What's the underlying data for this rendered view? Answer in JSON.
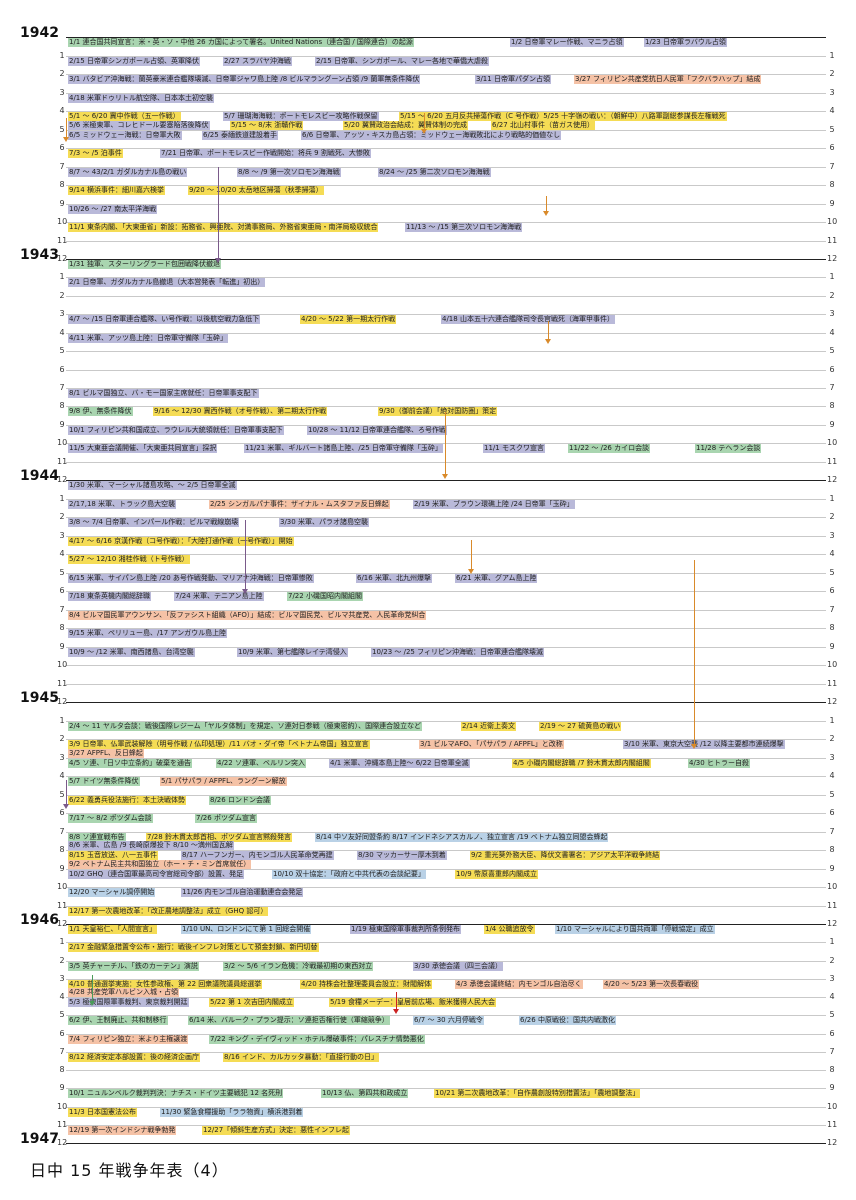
{
  "title": "日中 15 年戦争年表（4）",
  "colors": {
    "g": "#a9d5b0",
    "p": "#b9b9d9",
    "y": "#f5dc55",
    "o": "#f5c2a6",
    "b": "#b9d1e6",
    "v": "#d8b8da"
  },
  "years": [
    {
      "label": "1942",
      "events": [
        {
          "m": 1,
          "c": "g",
          "t": "1/1 連合国共同宣言：米・英・ソ・中他 26 カ国によって署名。United Nations（連合国 / 国際連合）の起源"
        },
        {
          "m": 1,
          "c": "p",
          "t": "1/2 日帝軍マレー作戦、マニラ占領"
        },
        {
          "m": 1,
          "c": "p",
          "t": "1/23 日帝軍ラバウル占領"
        },
        {
          "m": 2,
          "c": "p",
          "t": "2/15 日帝軍シンガポール占領、英軍降伏"
        },
        {
          "m": 2,
          "c": "p",
          "t": "2/27 スラバヤ沖海戦"
        },
        {
          "m": 2,
          "c": "p",
          "t": "2/15 日帝軍、シンガポール、マレー各地で華僑大虐殺"
        },
        {
          "m": 3,
          "c": "p",
          "t": "3/1 バタビア沖海戦：蘭英豪米連合艦隊壊滅、日帝軍ジャワ島上陸 /8 ビルマラングーン占領 /9 蘭軍無条件降伏"
        },
        {
          "m": 3,
          "c": "p",
          "t": "3/11 日帝軍パダン占領"
        },
        {
          "m": 3,
          "c": "o",
          "t": "3/27 フィリピン共産党抗日人民軍「フクバラハップ」結成"
        },
        {
          "m": 4,
          "c": "p",
          "t": "4/18 米軍ドゥリトル航空隊、日本本土初空襲"
        },
        {
          "m": 5,
          "c": "y",
          "t": "5/1 ～ 6/20 冀中作戦（五一作戦）"
        },
        {
          "m": 5,
          "c": "p",
          "t": "5/7 珊瑚海海戦：ポートモレスビー攻略作戦保留"
        },
        {
          "m": 5,
          "c": "y",
          "t": "5/15 ～ 6/20 五月反共掃蕩作戦（C 号作戦）5/25 十字嶺の戦い：（朝鮮中）八路軍副総参謀長左権戦死"
        },
        {
          "m": 5,
          "c": "p",
          "t": "5/6 米極東軍、コレヒドール要塞陥落後降伏"
        },
        {
          "m": 5,
          "c": "y",
          "t": "5/15 ～ 8/末 浙贛作戦"
        },
        {
          "m": 5,
          "c": "y",
          "t": "5/20 翼賛政治会結成：翼賛体制の完成"
        },
        {
          "m": 5,
          "c": "y",
          "t": "6/27 北山村事件（苗ガス使用）"
        },
        {
          "m": 6,
          "c": "p",
          "t": "6/5 ミッドウェー海戦：日帝軍大敗"
        },
        {
          "m": 6,
          "c": "p",
          "t": "6/25 泰緬鉄道建設着手"
        },
        {
          "m": 6,
          "c": "p",
          "t": "6/6 日帝軍、アッツ・キスカ島占領：ミッドウェー海戦敗北により戦略的価値なし"
        },
        {
          "m": 7,
          "c": "y",
          "t": "7/3 ～ /5 泊事件"
        },
        {
          "m": 7,
          "c": "p",
          "t": "7/21 日帝軍、ポートモレスビー作戦開始：将兵 9 割戦死、大惨敗"
        },
        {
          "m": 8,
          "c": "p",
          "t": "8/7 ～ 43/2/1 ガダルカナル島の戦い"
        },
        {
          "m": 8,
          "c": "p",
          "t": "8/8 ～ /9 第一次ソロモン海海戦"
        },
        {
          "m": 8,
          "c": "p",
          "t": "8/24 ～ /25 第二次ソロモン海海戦"
        },
        {
          "m": 9,
          "c": "y",
          "t": "9/14 横浜事件：細川嘉六検挙"
        },
        {
          "m": 9,
          "c": "y",
          "t": "9/20 ～ 10/20 太岳地区掃蕩（秋季掃蕩）"
        },
        {
          "m": 10,
          "c": "p",
          "t": "10/26 ～ /27 南太平洋海戦"
        },
        {
          "m": 11,
          "c": "y",
          "t": "11/1 東条内閣、「大東亜省」新設：拓務省、興亜院、対満事務局、外務省東亜局・南洋局吸収統合"
        },
        {
          "m": 11,
          "c": "p",
          "t": "11/13 ～ /15 第三次ソロモン海海戦"
        }
      ]
    },
    {
      "label": "1943",
      "events": [
        {
          "m": 1,
          "c": "g",
          "t": "1/31 独軍、スターリングラード包囲戦降伏撤退"
        },
        {
          "m": 2,
          "c": "p",
          "t": "2/1 日帝軍、ガダルカナル島撤退（大本営発表「転進」初出）"
        },
        {
          "m": 4,
          "c": "p",
          "t": "4/7 ～ /15 日帝軍連合艦隊、い号作戦：以後航空戦力急低下"
        },
        {
          "m": 4,
          "c": "y",
          "t": "4/20 ～ 5/22 第一期太行作戦"
        },
        {
          "m": 4,
          "c": "p",
          "t": "4/18 山本五十六連合艦隊司令長官戦死（海軍甲事件）"
        },
        {
          "m": 5,
          "c": "p",
          "t": "4/11 米軍、アッツ島上陸：日帝軍守備隊「玉砕」"
        },
        {
          "m": 8,
          "c": "p",
          "t": "8/1 ビルマ国独立、バ・モー国家主席就任：日帝軍事支配下"
        },
        {
          "m": 9,
          "c": "g",
          "t": "9/8 伊、無条件降伏"
        },
        {
          "m": 9,
          "c": "y",
          "t": "9/16 ～ 12/30 冀西作戦（オ号作戦）、第二期太行作戦"
        },
        {
          "m": 9,
          "c": "y",
          "t": "9/30（御前会議）「絶対国防圏」策定"
        },
        {
          "m": 10,
          "c": "p",
          "t": "10/1 フィリピン共和国成立、ラウレル大統領就任：日帝軍事支配下"
        },
        {
          "m": 10,
          "c": "p",
          "t": "10/28 ～ 11/12 日帝軍連合艦隊、ろ号作戦"
        },
        {
          "m": 11,
          "c": "p",
          "t": "11/5 大東亜会議開催、「大東亜共同宣言」採択"
        },
        {
          "m": 11,
          "c": "p",
          "t": "11/21 米軍、ギルバート諸島上陸、/25 日帝軍守備隊「玉砕」"
        },
        {
          "m": 11,
          "c": "p",
          "t": "11/1 モスクワ宣言"
        },
        {
          "m": 11,
          "c": "g",
          "t": "11/22 ～ /26 カイロ会談"
        },
        {
          "m": 11,
          "c": "g",
          "t": "11/28 テヘラン会談"
        }
      ]
    },
    {
      "label": "1944",
      "events": [
        {
          "m": 1,
          "c": "p",
          "t": "1/30 米軍、マーシャル諸島攻略、～ 2/5 日帝軍全滅"
        },
        {
          "m": 2,
          "c": "p",
          "t": "2/17,18 米軍、トラック島大空襲"
        },
        {
          "m": 2,
          "c": "o",
          "t": "2/25 シンガルパナ事件：ザイナル・ムスタファ反日蜂起"
        },
        {
          "m": 2,
          "c": "p",
          "t": "2/19 米軍、ブラウン環礁上陸 /24 日帝軍「玉砕」"
        },
        {
          "m": 3,
          "c": "p",
          "t": "3/8 ～ 7/4 日帝軍、インパール作戦：ビルマ戦線崩壊"
        },
        {
          "m": 3,
          "c": "p",
          "t": "3/30 米軍、パラオ諸島空襲"
        },
        {
          "m": 4,
          "c": "y",
          "t": "4/17 ～ 6/16 京漢作戦（コ号作戦）：「大陸打通作戦（一号作戦）」開始"
        },
        {
          "m": 5,
          "c": "y",
          "t": "5/27 ～ 12/10 湘桂作戦（ト号作戦）"
        },
        {
          "m": 6,
          "c": "p",
          "t": "6/15 米軍、サイパン島上陸 /20 あ号作戦発動、マリアナ沖海戦：日帝軍惨敗"
        },
        {
          "m": 6,
          "c": "p",
          "t": "6/16 米軍、北九州爆撃"
        },
        {
          "m": 6,
          "c": "p",
          "t": "6/21 米軍、グアム島上陸"
        },
        {
          "m": 7,
          "c": "p",
          "t": "7/18 東条英機内閣総辞職"
        },
        {
          "m": 7,
          "c": "p",
          "t": "7/24 米軍、テニアン島上陸"
        },
        {
          "m": 7,
          "c": "g",
          "t": "7/22 小磯国昭内閣組閣"
        },
        {
          "m": 8,
          "c": "o",
          "t": "8/4 ビルマ国民軍アウンサン、「反ファシスト組織（AFO）」結成：ビルマ国民党、ビルマ共産党、人民革命党糾合"
        },
        {
          "m": 9,
          "c": "p",
          "t": "9/15 米軍、ペリリュー島、/17 アンガウル島上陸"
        },
        {
          "m": 10,
          "c": "p",
          "t": "10/9 ～ /12 米軍、南西諸島、台湾空襲"
        },
        {
          "m": 10,
          "c": "p",
          "t": "10/9 米軍、第七艦隊レイテ湾侵入"
        },
        {
          "m": 10,
          "c": "p",
          "t": "10/23 ～ /25 フィリピン沖海戦：日帝軍連合艦隊壊滅"
        }
      ]
    },
    {
      "label": "1945",
      "events": [
        {
          "m": 2,
          "c": "g",
          "t": "2/4 ～ 11 ヤルタ会談：戦後国際レジーム「ヤルタ体制」を規定、ソ連対日参戦（極東密約）、国際連合設立など"
        },
        {
          "m": 2,
          "c": "y",
          "t": "2/14 近衛上奏文"
        },
        {
          "m": 2,
          "c": "y",
          "t": "2/19 ～ 27 硫黄島の戦い"
        },
        {
          "m": 3,
          "c": "y",
          "t": "3/9 日帝軍、仏軍武装解除（明号作戦 / 仏印処理）/11 バオ・ダイ帝「ベトナム帝国」独立宣言"
        },
        {
          "m": 3,
          "c": "o",
          "t": "3/1 ビルマAFO、「パサパラ / AFPFL」と改称"
        },
        {
          "m": 3,
          "c": "p",
          "t": "3/10 米軍、東京大空襲 /12 以降主要都市連続爆撃"
        },
        {
          "m": 3,
          "c": "o",
          "t": "3/27 AFPFL、反日蜂起"
        },
        {
          "m": 4,
          "c": "g",
          "t": "4/5 ソ連、「日ソ中立条約」破棄を通告"
        },
        {
          "m": 4,
          "c": "g",
          "t": "4/22 ソ連軍、ベルリン突入"
        },
        {
          "m": 4,
          "c": "p",
          "t": "4/1 米軍、沖縄本島上陸～ 6/22 日帝軍全滅"
        },
        {
          "m": 4,
          "c": "y",
          "t": "4/5 小磯内閣総辞職 /7 鈴木貫太郎内閣組閣"
        },
        {
          "m": 4,
          "c": "g",
          "t": "4/30 ヒトラー自殺"
        },
        {
          "m": 5,
          "c": "g",
          "t": "5/7 ドイツ無条件降伏"
        },
        {
          "m": 5,
          "c": "o",
          "t": "5/1 パサパラ / AFPFL、ラングーン解放"
        },
        {
          "m": 6,
          "c": "y",
          "t": "6/22 義勇兵役法施行：本土決戦体勢"
        },
        {
          "m": 6,
          "c": "g",
          "t": "8/26 ロンドン会議"
        },
        {
          "m": 7,
          "c": "g",
          "t": "7/17 ～ 8/2 ポツダム会談"
        },
        {
          "m": 7,
          "c": "g",
          "t": "7/26 ポツダム宣言"
        },
        {
          "m": 8,
          "c": "g",
          "t": "8/8 ソ連宣戦布告"
        },
        {
          "m": 8,
          "c": "y",
          "t": "7/28 鈴木貫太郎首相、ポツダム宣言黙殺発言"
        },
        {
          "m": 8,
          "c": "b",
          "t": "8/14 中ソ友好同盟条約 8/17 インドネシアスカルノ、独立宣言 /19 ベトナム独立同盟会蜂起"
        },
        {
          "m": 8,
          "c": "p",
          "t": "8/6 米軍、広島 /9 長崎原爆投下 8/10 ～満州国瓦解"
        },
        {
          "m": 9,
          "c": "y",
          "t": "8/15 玉音放送、八一五事件"
        },
        {
          "m": 9,
          "c": "p",
          "t": "8/17 ハーフンガー、内モンゴル人民革命党再建"
        },
        {
          "m": 9,
          "c": "p",
          "t": "8/30 マッカーサー厚木到着"
        },
        {
          "m": 9,
          "c": "y",
          "t": "9/2 重光葵外務大臣、降伏文書署名：アジア太平洋戦争終結"
        },
        {
          "m": 9,
          "c": "o",
          "t": "9/2 ベトナム民主共和国独立（ホー・チ・ミン首席就任）"
        },
        {
          "m": 10,
          "c": "p",
          "t": "10/2 GHQ（連合国軍最高司令官総司令部）設置、発足"
        },
        {
          "m": 10,
          "c": "b",
          "t": "10/10 双十協定：「政府と中共代表の会談紀要」"
        },
        {
          "m": 10,
          "c": "y",
          "t": "10/9 幣原喜重郎内閣成立"
        },
        {
          "m": 11,
          "c": "b",
          "t": "12/20 マーシャル調停開始"
        },
        {
          "m": 11,
          "c": "p",
          "t": "11/26 内モンゴル自治運動連合会発足"
        },
        {
          "m": 12,
          "c": "y",
          "t": "12/17 第一次農地改革：「改正農地調整法」成立（GHQ 認可）"
        }
      ]
    },
    {
      "label": "1946",
      "events": [
        {
          "m": 1,
          "c": "y",
          "t": "1/1 天皇裕仁、「人間宣言」"
        },
        {
          "m": 1,
          "c": "b",
          "t": "1/10 UN、ロンドンにて第 1 回総会開催"
        },
        {
          "m": 1,
          "c": "p",
          "t": "1/19 極東国際軍事裁判所条例発布"
        },
        {
          "m": 1,
          "c": "y",
          "t": "1/4 公職追放令"
        },
        {
          "m": 1,
          "c": "b",
          "t": "1/10 マーシャルにより国共両軍「停戦協定」成立"
        },
        {
          "m": 2,
          "c": "y",
          "t": "2/17 金融緊急措置令公布・施行：戦後インフレ対策として預金封鎖、新円切替"
        },
        {
          "m": 3,
          "c": "g",
          "t": "3/5 英チャーチル、「鉄のカーテン」演説"
        },
        {
          "m": 3,
          "c": "g",
          "t": "3/2 ～ 5/6 イラン危機：冷戦最初期の東西対立"
        },
        {
          "m": 3,
          "c": "p",
          "t": "3/30 承徳会議（四三会議）"
        },
        {
          "m": 4,
          "c": "y",
          "t": "4/10 普通選挙実施：女性参政権、第 22 回衆議院議員総選挙"
        },
        {
          "m": 4,
          "c": "y",
          "t": "4/20 持株会社整理委員会設立：財閥解体"
        },
        {
          "m": 4,
          "c": "o",
          "t": "4/3 承徳会議終結：内モンゴル自治尽く"
        },
        {
          "m": 4,
          "c": "o",
          "t": "4/20 ～ 5/23 第一次長春戦役"
        },
        {
          "m": 4,
          "c": "o",
          "t": "4/28 共産党軍ハルビン入城・占領"
        },
        {
          "m": 5,
          "c": "p",
          "t": "5/3 極東国際軍事裁判、東京裁判開廷"
        },
        {
          "m": 5,
          "c": "y",
          "t": "5/22 第 1 次吉田内閣成立"
        },
        {
          "m": 5,
          "c": "y",
          "t": "5/19 食糧メーデー：皇居前広場、飯米獲得人民大会"
        },
        {
          "m": 6,
          "c": "g",
          "t": "6/2 伊、王制廃止、共和制移行"
        },
        {
          "m": 6,
          "c": "g",
          "t": "6/14 米、バルーク・プラン提示：ソ連拒否権行使（軍縮競争）"
        },
        {
          "m": 6,
          "c": "b",
          "t": "6/7 ～ 30 六月停戦令"
        },
        {
          "m": 6,
          "c": "b",
          "t": "6/26 中原戦役：国共内戦激化"
        },
        {
          "m": 7,
          "c": "o",
          "t": "7/4 フィリピン独立：米より主権譲渡"
        },
        {
          "m": 7,
          "c": "g",
          "t": "7/22 キング・デイヴィッド・ホテル爆破事件：パレスチナ情勢悪化"
        },
        {
          "m": 8,
          "c": "y",
          "t": "8/12 経済安定本部設置：後の経済企画庁"
        },
        {
          "m": 8,
          "c": "y",
          "t": "8/16 インド、カルカッタ暴動：「直接行動の日」"
        },
        {
          "m": 10,
          "c": "g",
          "t": "10/1 ニュルンベルク裁判判決：ナチス・ドイツ主要戦犯 12 名死刑"
        },
        {
          "m": 10,
          "c": "g",
          "t": "10/13 仏、第四共和政成立"
        },
        {
          "m": 10,
          "c": "y",
          "t": "10/21 第二次農地改革：「自作農創設特別措置法」「農地調整法」"
        },
        {
          "m": 11,
          "c": "y",
          "t": "11/3 日本国憲法公布"
        },
        {
          "m": 11,
          "c": "b",
          "t": "11/30 緊急食糧援助「ララ物資」横浜港到着"
        },
        {
          "m": 12,
          "c": "o",
          "t": "12/19 第一次インドシナ戦争勃発"
        },
        {
          "m": 12,
          "c": "y",
          "t": "12/27「傾斜生産方式」決定：悪性インフレ起"
        }
      ]
    },
    {
      "label": "1947",
      "events": []
    }
  ]
}
